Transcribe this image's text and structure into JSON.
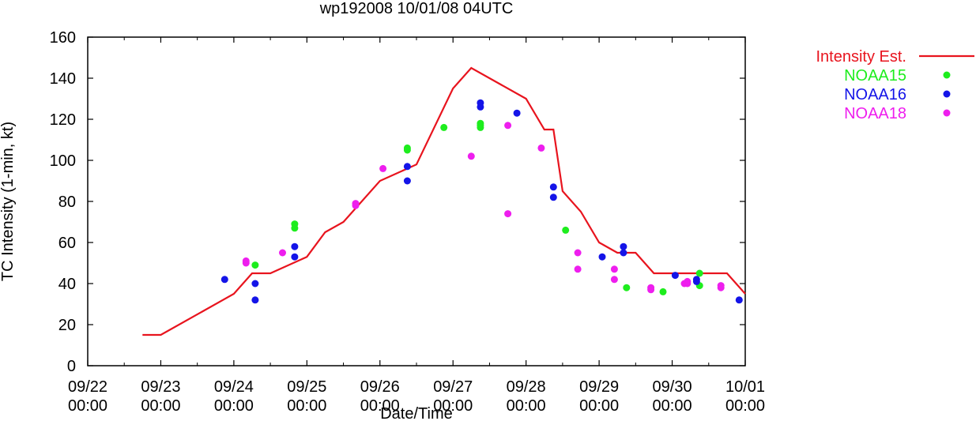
{
  "chart_data": {
    "type": "scatter",
    "title": "wp192008 10/01/08 04UTC",
    "xlabel": "Date/Time",
    "ylabel": "TC Intensity (1-min, kt)",
    "xlim": [
      "2008-09-22 00:00",
      "2008-10-01 00:00"
    ],
    "ylim": [
      0,
      160
    ],
    "y_ticks": [
      0,
      20,
      40,
      60,
      80,
      100,
      120,
      140,
      160
    ],
    "x_ticks": [
      {
        "date": "2008-09-22 00:00",
        "line1": "09/22",
        "line2": "00:00"
      },
      {
        "date": "2008-09-23 00:00",
        "line1": "09/23",
        "line2": "00:00"
      },
      {
        "date": "2008-09-24 00:00",
        "line1": "09/24",
        "line2": "00:00"
      },
      {
        "date": "2008-09-25 00:00",
        "line1": "09/25",
        "line2": "00:00"
      },
      {
        "date": "2008-09-26 00:00",
        "line1": "09/26",
        "line2": "00:00"
      },
      {
        "date": "2008-09-27 00:00",
        "line1": "09/27",
        "line2": "00:00"
      },
      {
        "date": "2008-09-28 00:00",
        "line1": "09/28",
        "line2": "00:00"
      },
      {
        "date": "2008-09-29 00:00",
        "line1": "09/29",
        "line2": "00:00"
      },
      {
        "date": "2008-09-30 00:00",
        "line1": "09/30",
        "line2": "00:00"
      },
      {
        "date": "2008-10-01 00:00",
        "line1": "10/01",
        "line2": "00:00"
      }
    ],
    "grid": false,
    "legend_position": "outside-right-top",
    "series": [
      {
        "name": "Intensity Est.",
        "style": "line",
        "color": "#e8141e",
        "points": [
          [
            "2008-09-22 18:00",
            15
          ],
          [
            "2008-09-23 00:00",
            15
          ],
          [
            "2008-09-24 00:00",
            35
          ],
          [
            "2008-09-24 06:00",
            45
          ],
          [
            "2008-09-24 12:00",
            45
          ],
          [
            "2008-09-25 00:00",
            53
          ],
          [
            "2008-09-25 06:00",
            65
          ],
          [
            "2008-09-25 12:00",
            70
          ],
          [
            "2008-09-26 00:00",
            90
          ],
          [
            "2008-09-26 12:00",
            98
          ],
          [
            "2008-09-27 00:00",
            135
          ],
          [
            "2008-09-27 06:00",
            145
          ],
          [
            "2008-09-28 00:00",
            130
          ],
          [
            "2008-09-28 06:00",
            115
          ],
          [
            "2008-09-28 09:00",
            115
          ],
          [
            "2008-09-28 12:00",
            85
          ],
          [
            "2008-09-28 18:00",
            75
          ],
          [
            "2008-09-29 00:00",
            60
          ],
          [
            "2008-09-29 06:00",
            55
          ],
          [
            "2008-09-29 12:00",
            55
          ],
          [
            "2008-09-29 18:00",
            45
          ],
          [
            "2008-09-30 12:00",
            45
          ],
          [
            "2008-09-30 18:00",
            45
          ],
          [
            "2008-10-01 00:00",
            35
          ]
        ]
      },
      {
        "name": "NOAA15",
        "style": "points",
        "color": "#1eed1e",
        "points": [
          [
            "2008-09-24 07:00",
            49
          ],
          [
            "2008-09-24 20:00",
            69
          ],
          [
            "2008-09-24 20:00",
            67
          ],
          [
            "2008-09-26 09:00",
            106
          ],
          [
            "2008-09-26 09:00",
            105
          ],
          [
            "2008-09-26 21:00",
            116
          ],
          [
            "2008-09-27 09:00",
            118
          ],
          [
            "2008-09-27 09:00",
            117
          ],
          [
            "2008-09-27 09:00",
            116
          ],
          [
            "2008-09-28 13:00",
            66
          ],
          [
            "2008-09-29 09:00",
            38
          ],
          [
            "2008-09-29 21:00",
            36
          ],
          [
            "2008-09-30 09:00",
            45
          ],
          [
            "2008-09-30 09:00",
            39
          ]
        ]
      },
      {
        "name": "NOAA16",
        "style": "points",
        "color": "#1414e8",
        "points": [
          [
            "2008-09-23 21:00",
            42
          ],
          [
            "2008-09-24 07:00",
            40
          ],
          [
            "2008-09-24 07:00",
            32
          ],
          [
            "2008-09-24 20:00",
            58
          ],
          [
            "2008-09-24 20:00",
            53
          ],
          [
            "2008-09-26 09:00",
            97
          ],
          [
            "2008-09-26 09:00",
            90
          ],
          [
            "2008-09-27 09:00",
            128
          ],
          [
            "2008-09-27 09:00",
            126
          ],
          [
            "2008-09-27 21:00",
            123
          ],
          [
            "2008-09-28 09:00",
            87
          ],
          [
            "2008-09-28 09:00",
            82
          ],
          [
            "2008-09-29 01:00",
            53
          ],
          [
            "2008-09-29 08:00",
            58
          ],
          [
            "2008-09-29 08:00",
            55
          ],
          [
            "2008-09-30 01:00",
            44
          ],
          [
            "2008-09-30 08:00",
            42
          ],
          [
            "2008-09-30 08:00",
            41
          ],
          [
            "2008-09-30 22:00",
            32
          ]
        ]
      },
      {
        "name": "NOAA18",
        "style": "points",
        "color": "#ee1eee",
        "points": [
          [
            "2008-09-24 04:00",
            51
          ],
          [
            "2008-09-24 04:00",
            50
          ],
          [
            "2008-09-24 16:00",
            55
          ],
          [
            "2008-09-25 16:00",
            79
          ],
          [
            "2008-09-25 16:00",
            78
          ],
          [
            "2008-09-26 01:00",
            96
          ],
          [
            "2008-09-27 06:00",
            102
          ],
          [
            "2008-09-27 18:00",
            117
          ],
          [
            "2008-09-27 18:00",
            74
          ],
          [
            "2008-09-28 05:00",
            106
          ],
          [
            "2008-09-28 17:00",
            55
          ],
          [
            "2008-09-28 17:00",
            47
          ],
          [
            "2008-09-29 05:00",
            47
          ],
          [
            "2008-09-29 05:00",
            42
          ],
          [
            "2008-09-29 17:00",
            38
          ],
          [
            "2008-09-29 17:00",
            37
          ],
          [
            "2008-09-30 05:00",
            41
          ],
          [
            "2008-09-30 05:00",
            40
          ],
          [
            "2008-09-30 16:00",
            39
          ],
          [
            "2008-09-30 16:00",
            38
          ],
          [
            "2008-09-30 04:00",
            40
          ]
        ]
      }
    ]
  }
}
